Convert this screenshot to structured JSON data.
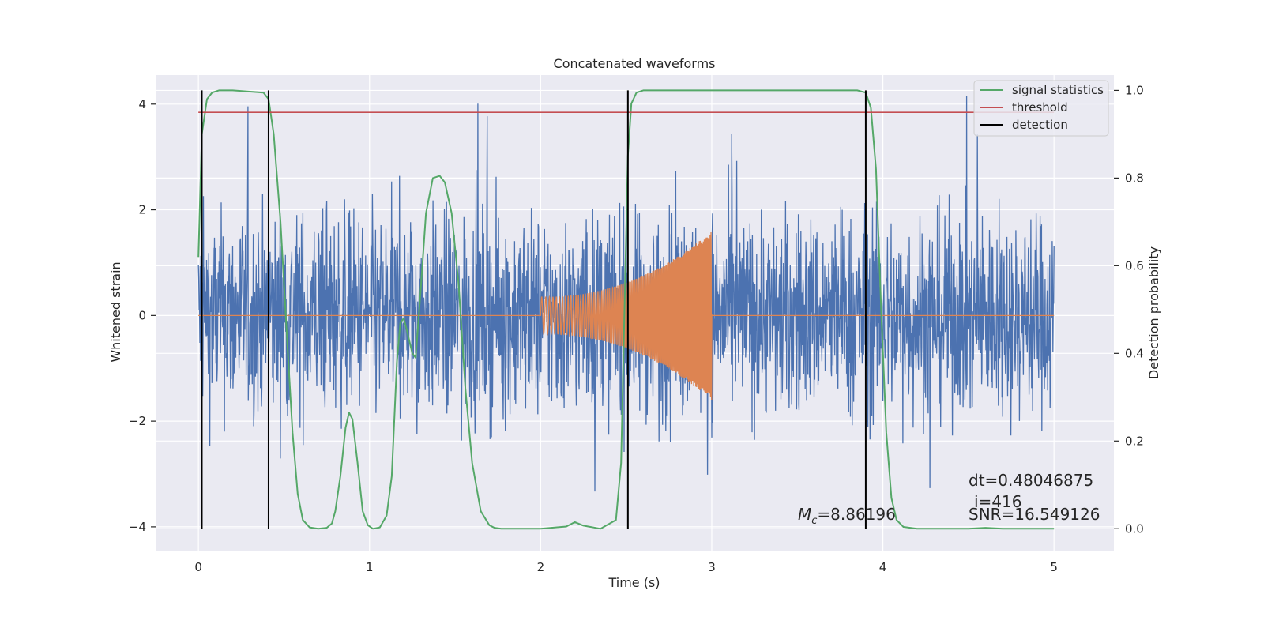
{
  "chart_data": {
    "type": "line",
    "title": "Concatenated waveforms",
    "xlabel": "Time (s)",
    "ylabel": "Whitened strain",
    "y2label": "Detection probability",
    "xlim": [
      -0.25,
      5.35
    ],
    "ylim": [
      -4.45,
      4.55
    ],
    "y2lim": [
      -0.05,
      1.035
    ],
    "xticks": [
      0,
      1,
      2,
      3,
      4,
      5
    ],
    "xtick_labels": [
      "0",
      "1",
      "2",
      "3",
      "4",
      "5"
    ],
    "yticks": [
      -4,
      -2,
      0,
      2,
      4
    ],
    "ytick_labels": [
      "−4",
      "−2",
      "0",
      "2",
      "4"
    ],
    "y2ticks": [
      0.0,
      0.2,
      0.4,
      0.6,
      0.8,
      1.0
    ],
    "y2tick_labels": [
      "0.0",
      "0.2",
      "0.4",
      "0.6",
      "0.8",
      "1.0"
    ],
    "grid": true,
    "legend_position": "top-right",
    "legend": [
      {
        "label": "signal statistics",
        "color": "#55a868"
      },
      {
        "label": "threshold",
        "color": "#c44e52"
      },
      {
        "label": "detection",
        "color": "#000000"
      }
    ],
    "series": [
      {
        "role": "strain",
        "color": "#4c72b0",
        "x_range": [
          0,
          5
        ],
        "amplitude_envelope": 1.8
      },
      {
        "role": "injected waveform",
        "color": "#dd8452",
        "x_range": [
          2,
          3
        ],
        "start_amplitude": 0.35,
        "end_amplitude": 1.6
      },
      {
        "name": "signal statistics",
        "color": "#55a868",
        "axis": "right",
        "x": [
          0,
          0.02,
          0.05,
          0.08,
          0.12,
          0.2,
          0.38,
          0.41,
          0.44,
          0.48,
          0.52,
          0.55,
          0.58,
          0.61,
          0.65,
          0.7,
          0.75,
          0.78,
          0.8,
          0.83,
          0.86,
          0.88,
          0.9,
          0.93,
          0.96,
          0.99,
          1.02,
          1.06,
          1.1,
          1.13,
          1.16,
          1.18,
          1.2,
          1.22,
          1.25,
          1.27,
          1.3,
          1.33,
          1.37,
          1.41,
          1.44,
          1.48,
          1.52,
          1.56,
          1.6,
          1.65,
          1.7,
          1.73,
          1.77,
          1.82,
          2.0,
          2.15,
          2.2,
          2.25,
          2.35,
          2.44,
          2.47,
          2.49,
          2.51,
          2.53,
          2.56,
          2.6,
          2.7,
          3.85,
          3.9,
          3.93,
          3.96,
          3.99,
          4.02,
          4.05,
          4.08,
          4.12,
          4.2,
          4.5,
          4.6,
          4.7,
          5.0
        ],
        "y": [
          0.62,
          0.9,
          0.98,
          0.995,
          1.0,
          1.0,
          0.995,
          0.98,
          0.9,
          0.7,
          0.42,
          0.22,
          0.08,
          0.02,
          0.003,
          0.0,
          0.002,
          0.012,
          0.04,
          0.12,
          0.23,
          0.265,
          0.25,
          0.15,
          0.04,
          0.008,
          0.0,
          0.003,
          0.03,
          0.12,
          0.38,
          0.47,
          0.48,
          0.45,
          0.4,
          0.39,
          0.55,
          0.72,
          0.8,
          0.805,
          0.79,
          0.72,
          0.56,
          0.32,
          0.15,
          0.04,
          0.008,
          0.002,
          0.0,
          0.0,
          0.0,
          0.005,
          0.015,
          0.007,
          0.0,
          0.02,
          0.15,
          0.5,
          0.85,
          0.97,
          0.995,
          1.0,
          1.0,
          1.0,
          0.995,
          0.96,
          0.82,
          0.5,
          0.22,
          0.07,
          0.02,
          0.004,
          0.0,
          0.0,
          0.002,
          0.0,
          0.0
        ]
      },
      {
        "name": "threshold",
        "color": "#c44e52",
        "axis": "right",
        "x": [
          0,
          5
        ],
        "y": [
          0.95,
          0.95
        ]
      }
    ],
    "detections": [
      0.02,
      0.41,
      2.51,
      3.9
    ],
    "annotations": {
      "dt": "dt=0.48046875",
      "i": "i=416",
      "mc_symbol": "M",
      "mc_subscript": "c",
      "mc_value": "=8.86196",
      "snr": "SNR=16.549126"
    }
  }
}
